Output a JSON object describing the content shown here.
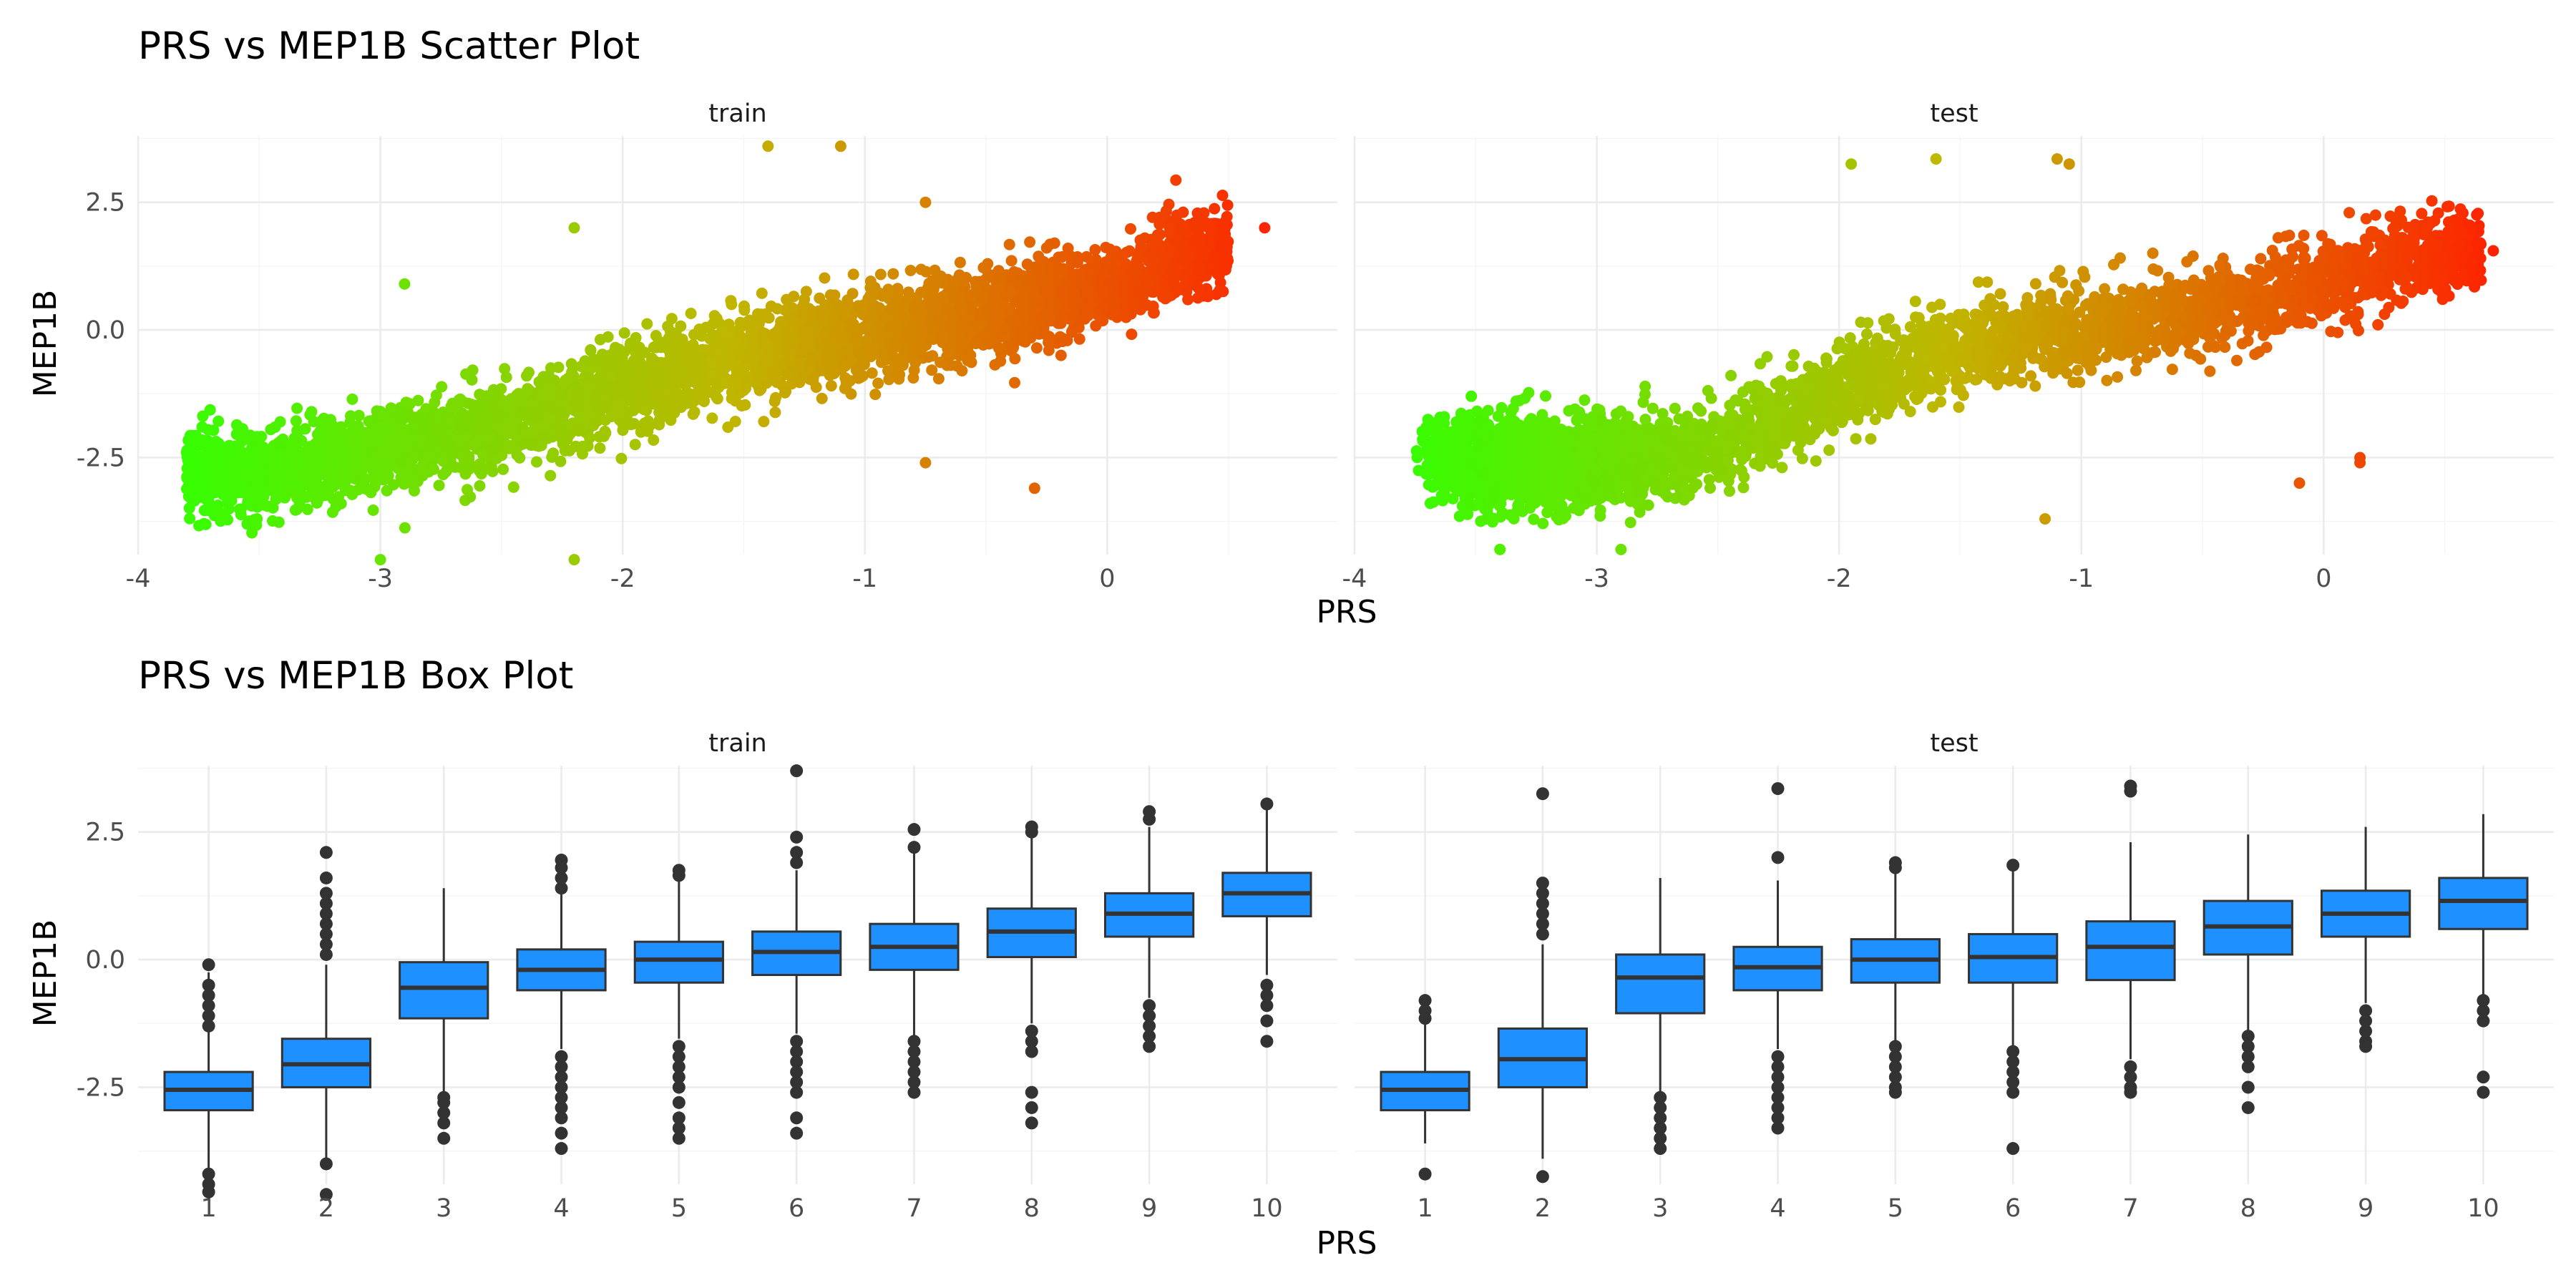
{
  "chart_data": [
    {
      "type": "scatter",
      "title": "PRS vs MEP1B Scatter Plot",
      "xlabel": "PRS",
      "ylabel": "MEP1B",
      "facets": [
        "train",
        "test"
      ],
      "xlim": [
        -4,
        0.95
      ],
      "ylim": [
        -4.4,
        3.8
      ],
      "xticks": [
        -4,
        -3,
        -2,
        -1,
        0
      ],
      "xtick_labels": [
        "-4",
        "-3",
        "-2",
        "-1",
        "0"
      ],
      "yticks": [
        -2.5,
        0,
        2.5
      ],
      "ytick_labels": [
        "-2.5",
        "0.0",
        "2.5"
      ],
      "grid": true,
      "color_gradient": {
        "low": "#33ff00",
        "mid": "#c0b600",
        "high": "#ff2000",
        "mapped_to": "PRS"
      },
      "panels": {
        "train": {
          "trend_points": [
            [
              -3.8,
              -2.85
            ],
            [
              -3.5,
              -2.85
            ],
            [
              -3.2,
              -2.6
            ],
            [
              -2.9,
              -2.25
            ],
            [
              -2.6,
              -1.9
            ],
            [
              -2.3,
              -1.55
            ],
            [
              -2.0,
              -1.15
            ],
            [
              -1.7,
              -0.75
            ],
            [
              -1.4,
              -0.4
            ],
            [
              -1.1,
              -0.15
            ],
            [
              -0.8,
              0.1
            ],
            [
              -0.5,
              0.35
            ],
            [
              -0.2,
              0.65
            ],
            [
              0.1,
              1.0
            ],
            [
              0.3,
              1.4
            ],
            [
              0.5,
              1.75
            ]
          ],
          "outliers": [
            [
              -1.4,
              3.6
            ],
            [
              -1.1,
              3.6
            ],
            [
              -2.2,
              2.0
            ],
            [
              -0.75,
              2.5
            ],
            [
              -2.9,
              0.9
            ],
            [
              -2.2,
              -4.5
            ],
            [
              -3.0,
              -4.5
            ],
            [
              -3.8,
              -2.4
            ],
            [
              -0.75,
              -2.6
            ],
            [
              -0.3,
              -3.1
            ],
            [
              0.65,
              2.0
            ]
          ]
        },
        "test": {
          "trend_points": [
            [
              -3.7,
              -2.5
            ],
            [
              -3.4,
              -2.6
            ],
            [
              -3.1,
              -2.65
            ],
            [
              -2.8,
              -2.5
            ],
            [
              -2.5,
              -2.3
            ],
            [
              -2.2,
              -1.6
            ],
            [
              -1.9,
              -1.0
            ],
            [
              -1.6,
              -0.5
            ],
            [
              -1.3,
              -0.2
            ],
            [
              -1.0,
              0.05
            ],
            [
              -0.7,
              0.25
            ],
            [
              -0.4,
              0.5
            ],
            [
              -0.1,
              0.8
            ],
            [
              0.15,
              1.1
            ],
            [
              0.35,
              1.35
            ],
            [
              0.65,
              1.55
            ]
          ],
          "outliers": [
            [
              -1.95,
              3.25
            ],
            [
              -1.6,
              3.35
            ],
            [
              -1.1,
              3.35
            ],
            [
              -1.05,
              3.25
            ],
            [
              -1.15,
              -3.7
            ],
            [
              0.15,
              -2.6
            ],
            [
              0.15,
              -2.5
            ],
            [
              -0.1,
              -3.0
            ],
            [
              -2.9,
              -4.3
            ],
            [
              -3.4,
              -4.3
            ],
            [
              0.7,
              1.55
            ]
          ]
        }
      }
    },
    {
      "type": "box",
      "title": "PRS vs MEP1B Box Plot",
      "xlabel": "PRS",
      "ylabel": "MEP1B",
      "facets": [
        "train",
        "test"
      ],
      "categories": [
        "1",
        "2",
        "3",
        "4",
        "5",
        "6",
        "7",
        "8",
        "9",
        "10"
      ],
      "ylim": [
        -4.4,
        3.8
      ],
      "yticks": [
        -2.5,
        0,
        2.5
      ],
      "ytick_labels": [
        "-2.5",
        "0.0",
        "2.5"
      ],
      "grid": true,
      "fill_color": "#1e90ff",
      "panels": {
        "train": [
          {
            "q1": -2.95,
            "median": -2.55,
            "q3": -2.2,
            "whisker_low": -4.1,
            "whisker_high": -0.25,
            "outliers": [
              -0.1,
              -0.5,
              -0.7,
              -0.9,
              -1.1,
              -1.3,
              -4.2,
              -4.4,
              -4.55
            ]
          },
          {
            "q1": -2.5,
            "median": -2.05,
            "q3": -1.55,
            "whisker_low": -3.9,
            "whisker_high": -0.1,
            "outliers": [
              0.1,
              0.3,
              0.5,
              0.7,
              0.9,
              1.1,
              1.3,
              1.6,
              2.1,
              -4.0,
              -4.6
            ]
          },
          {
            "q1": -1.15,
            "median": -0.55,
            "q3": -0.05,
            "whisker_low": -2.6,
            "whisker_high": 1.4,
            "outliers": [
              -2.7,
              -2.8,
              -3.0,
              -3.2,
              -3.5
            ]
          },
          {
            "q1": -0.6,
            "median": -0.2,
            "q3": 0.2,
            "whisker_low": -1.75,
            "whisker_high": 1.3,
            "outliers": [
              1.4,
              1.6,
              1.8,
              1.95,
              -1.9,
              -2.1,
              -2.3,
              -2.5,
              -2.7,
              -2.9,
              -3.1,
              -3.4,
              -3.7
            ]
          },
          {
            "q1": -0.45,
            "median": 0.0,
            "q3": 0.35,
            "whisker_low": -1.55,
            "whisker_high": 1.55,
            "outliers": [
              1.65,
              1.75,
              -1.7,
              -1.9,
              -2.1,
              -2.3,
              -2.5,
              -2.8,
              -3.1,
              -3.3,
              -3.5
            ]
          },
          {
            "q1": -0.3,
            "median": 0.15,
            "q3": 0.55,
            "whisker_low": -1.45,
            "whisker_high": 1.75,
            "outliers": [
              1.9,
              2.1,
              2.4,
              3.7,
              -1.6,
              -1.8,
              -2.0,
              -2.2,
              -2.4,
              -2.6,
              -3.1,
              -3.4
            ]
          },
          {
            "q1": -0.2,
            "median": 0.25,
            "q3": 0.7,
            "whisker_low": -1.5,
            "whisker_high": 2.1,
            "outliers": [
              2.2,
              2.55,
              -1.6,
              -1.8,
              -2.0,
              -2.2,
              -2.4,
              -2.6
            ]
          },
          {
            "q1": 0.05,
            "median": 0.55,
            "q3": 1.0,
            "whisker_low": -1.25,
            "whisker_high": 2.4,
            "outliers": [
              2.5,
              2.6,
              -1.4,
              -1.6,
              -1.8,
              -2.6,
              -2.9,
              -3.2
            ]
          },
          {
            "q1": 0.45,
            "median": 0.9,
            "q3": 1.3,
            "whisker_low": -0.75,
            "whisker_high": 2.6,
            "outliers": [
              2.75,
              2.9,
              -0.9,
              -1.1,
              -1.3,
              -1.5,
              -1.7
            ]
          },
          {
            "q1": 0.85,
            "median": 1.3,
            "q3": 1.7,
            "whisker_low": -0.3,
            "whisker_high": 2.95,
            "outliers": [
              3.05,
              -0.5,
              -0.7,
              -0.9,
              -1.2,
              -1.6
            ]
          }
        ],
        "test": [
          {
            "q1": -2.95,
            "median": -2.55,
            "q3": -2.2,
            "whisker_low": -3.6,
            "whisker_high": -1.25,
            "outliers": [
              -0.8,
              -1.0,
              -1.15,
              -4.2
            ]
          },
          {
            "q1": -2.5,
            "median": -1.95,
            "q3": -1.35,
            "whisker_low": -3.9,
            "whisker_high": 0.3,
            "outliers": [
              0.5,
              0.7,
              0.9,
              1.1,
              1.3,
              1.5,
              3.25,
              -4.25
            ]
          },
          {
            "q1": -1.05,
            "median": -0.35,
            "q3": 0.1,
            "whisker_low": -2.6,
            "whisker_high": 1.6,
            "outliers": [
              -2.7,
              -2.9,
              -3.1,
              -3.3,
              -3.5,
              -3.7
            ]
          },
          {
            "q1": -0.6,
            "median": -0.15,
            "q3": 0.25,
            "whisker_low": -1.75,
            "whisker_high": 1.55,
            "outliers": [
              2.0,
              3.35,
              -1.9,
              -2.1,
              -2.3,
              -2.5,
              -2.7,
              -2.9,
              -3.1,
              -3.3
            ]
          },
          {
            "q1": -0.45,
            "median": 0.0,
            "q3": 0.4,
            "whisker_low": -1.65,
            "whisker_high": 1.7,
            "outliers": [
              1.8,
              1.9,
              -1.7,
              -1.9,
              -2.1,
              -2.3,
              -2.5,
              -2.6
            ]
          },
          {
            "q1": -0.45,
            "median": 0.05,
            "q3": 0.5,
            "whisker_low": -1.7,
            "whisker_high": 1.75,
            "outliers": [
              1.85,
              -1.8,
              -2.0,
              -2.2,
              -2.4,
              -2.6,
              -3.7
            ]
          },
          {
            "q1": -0.4,
            "median": 0.25,
            "q3": 0.75,
            "whisker_low": -1.95,
            "whisker_high": 2.3,
            "outliers": [
              3.3,
              3.4,
              -2.1,
              -2.3,
              -2.5,
              -2.6
            ]
          },
          {
            "q1": 0.1,
            "median": 0.65,
            "q3": 1.15,
            "whisker_low": -1.4,
            "whisker_high": 2.45,
            "outliers": [
              -1.5,
              -1.7,
              -1.9,
              -2.1,
              -2.5,
              -2.9
            ]
          },
          {
            "q1": 0.45,
            "median": 0.9,
            "q3": 1.35,
            "whisker_low": -0.85,
            "whisker_high": 2.6,
            "outliers": [
              -1.0,
              -1.2,
              -1.4,
              -1.6,
              -1.7
            ]
          },
          {
            "q1": 0.6,
            "median": 1.15,
            "q3": 1.6,
            "whisker_low": -0.7,
            "whisker_high": 2.85,
            "outliers": [
              -0.8,
              -1.0,
              -1.2,
              -2.3,
              -2.6
            ]
          }
        ]
      }
    }
  ]
}
